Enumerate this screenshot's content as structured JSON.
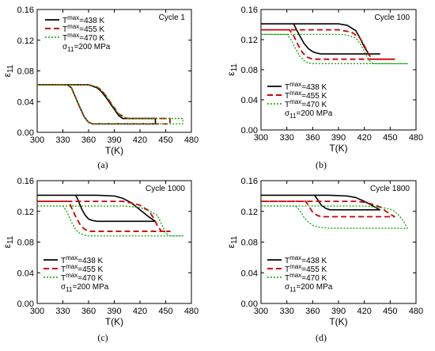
{
  "chart_data": [
    {
      "panel": "(a)",
      "type": "line",
      "cycle_label": "Cycle 1",
      "xlabel": "T(K)",
      "ylabel": "ε11",
      "xlim": [
        300,
        480
      ],
      "ylim": [
        0.0,
        0.16
      ],
      "xticks": [
        "300",
        "330",
        "360",
        "390",
        "420",
        "450",
        "480"
      ],
      "yticks": [
        "0.00",
        "0.04",
        "0.08",
        "0.12",
        "0.16"
      ],
      "legend": [
        "T^max=438 K",
        "T^max=455 K",
        "T^max=470 K"
      ],
      "stress_label": "σ11=200 MPa",
      "legend_position": "top-right",
      "series": [
        {
          "name": "T^max=438 K",
          "color": "#000000",
          "x": [
            300,
            320,
            335,
            340,
            345,
            350,
            355,
            360,
            365,
            370,
            380,
            390,
            400,
            420,
            438,
            438,
            420,
            400,
            395,
            390,
            385,
            380,
            375,
            370,
            360,
            350,
            340,
            330,
            320,
            310,
            300
          ],
          "y": [
            0.062,
            0.062,
            0.062,
            0.058,
            0.045,
            0.032,
            0.02,
            0.013,
            0.011,
            0.011,
            0.011,
            0.011,
            0.011,
            0.011,
            0.011,
            0.018,
            0.018,
            0.018,
            0.022,
            0.03,
            0.038,
            0.046,
            0.053,
            0.058,
            0.062,
            0.062,
            0.062,
            0.062,
            0.062,
            0.062,
            0.062
          ]
        },
        {
          "name": "T^max=455 K",
          "color": "#cc0000",
          "x": [
            300,
            320,
            335,
            340,
            345,
            350,
            355,
            360,
            365,
            370,
            380,
            390,
            400,
            420,
            440,
            455,
            455,
            440,
            420,
            405,
            395,
            390,
            385,
            380,
            375,
            370,
            360,
            350,
            340,
            330,
            320,
            310,
            300
          ],
          "y": [
            0.062,
            0.062,
            0.062,
            0.058,
            0.045,
            0.032,
            0.02,
            0.013,
            0.011,
            0.011,
            0.011,
            0.011,
            0.011,
            0.011,
            0.011,
            0.011,
            0.018,
            0.018,
            0.018,
            0.018,
            0.024,
            0.032,
            0.04,
            0.048,
            0.055,
            0.059,
            0.062,
            0.062,
            0.062,
            0.062,
            0.062,
            0.062,
            0.062
          ]
        },
        {
          "name": "T^max=470 K",
          "color": "#00aa00",
          "x": [
            300,
            320,
            335,
            340,
            345,
            350,
            355,
            360,
            365,
            370,
            380,
            390,
            400,
            420,
            440,
            470,
            470,
            440,
            420,
            405,
            395,
            390,
            385,
            380,
            375,
            370,
            360,
            350,
            340,
            330,
            320,
            310,
            300
          ],
          "y": [
            0.062,
            0.062,
            0.062,
            0.058,
            0.045,
            0.032,
            0.02,
            0.013,
            0.011,
            0.011,
            0.011,
            0.011,
            0.011,
            0.011,
            0.011,
            0.011,
            0.018,
            0.018,
            0.018,
            0.018,
            0.024,
            0.032,
            0.04,
            0.048,
            0.055,
            0.059,
            0.062,
            0.062,
            0.062,
            0.062,
            0.062,
            0.062,
            0.062
          ]
        }
      ]
    },
    {
      "panel": "(b)",
      "type": "line",
      "cycle_label": "Cycle 100",
      "xlabel": "T(K)",
      "ylabel": "ε11",
      "xlim": [
        300,
        480
      ],
      "ylim": [
        0.0,
        0.16
      ],
      "xticks": [
        "300",
        "330",
        "360",
        "390",
        "420",
        "450",
        "480"
      ],
      "yticks": [
        "0.00",
        "0.04",
        "0.08",
        "0.12",
        "0.16"
      ],
      "legend": [
        "T^max=438 K",
        "T^max=455 K",
        "T^max=470 K"
      ],
      "stress_label": "σ11=200 MPa",
      "legend_position": "bottom-left",
      "series": [
        {
          "name": "T^max=438 K",
          "color": "#000000",
          "x": [
            300,
            320,
            338,
            340,
            345,
            350,
            355,
            360,
            365,
            370,
            390,
            420,
            438,
            438,
            425,
            420,
            415,
            410,
            400,
            390,
            380,
            370,
            360,
            350,
            340,
            320,
            300
          ],
          "y": [
            0.141,
            0.141,
            0.141,
            0.136,
            0.125,
            0.115,
            0.108,
            0.104,
            0.102,
            0.101,
            0.101,
            0.101,
            0.101,
            0.101,
            0.101,
            0.11,
            0.122,
            0.132,
            0.139,
            0.141,
            0.141,
            0.141,
            0.141,
            0.141,
            0.141,
            0.141,
            0.141
          ]
        },
        {
          "name": "T^max=455 K",
          "color": "#cc0000",
          "x": [
            300,
            320,
            333,
            338,
            343,
            348,
            353,
            360,
            370,
            390,
            420,
            440,
            455,
            455,
            440,
            430,
            425,
            420,
            415,
            405,
            390,
            370,
            350,
            330,
            300
          ],
          "y": [
            0.133,
            0.133,
            0.133,
            0.125,
            0.113,
            0.103,
            0.097,
            0.094,
            0.094,
            0.094,
            0.094,
            0.094,
            0.094,
            0.094,
            0.094,
            0.094,
            0.1,
            0.112,
            0.122,
            0.13,
            0.133,
            0.133,
            0.133,
            0.133,
            0.133
          ]
        },
        {
          "name": "T^max=470 K",
          "color": "#00aa00",
          "x": [
            300,
            320,
            330,
            335,
            340,
            345,
            350,
            355,
            360,
            370,
            390,
            420,
            440,
            470,
            470,
            440,
            430,
            425,
            420,
            415,
            410,
            400,
            390,
            370,
            350,
            330,
            300
          ],
          "y": [
            0.127,
            0.127,
            0.127,
            0.12,
            0.108,
            0.098,
            0.092,
            0.089,
            0.088,
            0.088,
            0.088,
            0.088,
            0.088,
            0.088,
            0.088,
            0.088,
            0.088,
            0.093,
            0.104,
            0.115,
            0.122,
            0.126,
            0.127,
            0.127,
            0.127,
            0.127,
            0.127
          ]
        }
      ]
    },
    {
      "panel": "(c)",
      "type": "line",
      "cycle_label": "Cycle 1000",
      "xlabel": "T(K)",
      "ylabel": "ε11",
      "xlim": [
        300,
        480
      ],
      "ylim": [
        0.0,
        0.16
      ],
      "xticks": [
        "300",
        "330",
        "360",
        "390",
        "420",
        "450",
        "480"
      ],
      "yticks": [
        "0.00",
        "0.04",
        "0.08",
        "0.12",
        "0.16"
      ],
      "legend": [
        "T^max=438 K",
        "T^max=455 K",
        "T^max=470 K"
      ],
      "stress_label": "σ11=200 MPa",
      "legend_position": "bottom-left",
      "series": [
        {
          "name": "T^max=438 K",
          "color": "#000000",
          "x": [
            300,
            320,
            345,
            348,
            352,
            356,
            360,
            365,
            370,
            380,
            400,
            420,
            438,
            438,
            430,
            420,
            410,
            400,
            390,
            370,
            350,
            300
          ],
          "y": [
            0.141,
            0.141,
            0.141,
            0.134,
            0.123,
            0.115,
            0.11,
            0.108,
            0.107,
            0.107,
            0.107,
            0.107,
            0.107,
            0.107,
            0.113,
            0.122,
            0.131,
            0.137,
            0.14,
            0.141,
            0.141,
            0.141
          ]
        },
        {
          "name": "T^max=455 K",
          "color": "#cc0000",
          "x": [
            300,
            320,
            337,
            340,
            345,
            350,
            355,
            360,
            370,
            390,
            420,
            440,
            455,
            455,
            445,
            440,
            435,
            430,
            420,
            410,
            400,
            380,
            350,
            300
          ],
          "y": [
            0.133,
            0.133,
            0.133,
            0.125,
            0.113,
            0.103,
            0.097,
            0.094,
            0.094,
            0.094,
            0.094,
            0.094,
            0.094,
            0.094,
            0.094,
            0.102,
            0.113,
            0.121,
            0.128,
            0.131,
            0.133,
            0.133,
            0.133,
            0.133
          ]
        },
        {
          "name": "T^max=470 K",
          "color": "#00aa00",
          "x": [
            300,
            320,
            330,
            335,
            340,
            345,
            350,
            355,
            360,
            370,
            390,
            420,
            450,
            470,
            470,
            455,
            450,
            445,
            440,
            430,
            420,
            400,
            380,
            350,
            300
          ],
          "y": [
            0.127,
            0.127,
            0.127,
            0.119,
            0.106,
            0.096,
            0.091,
            0.089,
            0.088,
            0.088,
            0.088,
            0.088,
            0.088,
            0.088,
            0.088,
            0.088,
            0.092,
            0.104,
            0.115,
            0.121,
            0.125,
            0.127,
            0.127,
            0.127,
            0.127
          ]
        }
      ]
    },
    {
      "panel": "(d)",
      "type": "line",
      "cycle_label": "Cycle 1800",
      "xlabel": "T(K)",
      "ylabel": "ε11",
      "xlim": [
        300,
        480
      ],
      "ylim": [
        0.0,
        0.16
      ],
      "xticks": [
        "300",
        "330",
        "360",
        "390",
        "420",
        "450",
        "480"
      ],
      "yticks": [
        "0.00",
        "0.04",
        "0.08",
        "0.12",
        "0.16"
      ],
      "legend": [
        "T^max=438 K",
        "T^max=455 K",
        "T^max=470 K"
      ],
      "stress_label": "σ11=200 MPa",
      "legend_position": "bottom-left",
      "series": [
        {
          "name": "T^max=438 K",
          "color": "#000000",
          "x": [
            300,
            330,
            362,
            366,
            370,
            375,
            380,
            390,
            400,
            420,
            438,
            438,
            430,
            420,
            410,
            400,
            380,
            360,
            300
          ],
          "y": [
            0.141,
            0.141,
            0.141,
            0.135,
            0.128,
            0.124,
            0.122,
            0.122,
            0.122,
            0.122,
            0.122,
            0.122,
            0.127,
            0.133,
            0.138,
            0.14,
            0.141,
            0.141,
            0.141
          ]
        },
        {
          "name": "T^max=455 K",
          "color": "#cc0000",
          "x": [
            300,
            330,
            352,
            356,
            360,
            365,
            370,
            380,
            400,
            420,
            440,
            455,
            455,
            445,
            440,
            430,
            420,
            410,
            400,
            380,
            350,
            300
          ],
          "y": [
            0.133,
            0.133,
            0.133,
            0.126,
            0.119,
            0.115,
            0.113,
            0.113,
            0.113,
            0.113,
            0.113,
            0.113,
            0.113,
            0.12,
            0.125,
            0.129,
            0.132,
            0.133,
            0.133,
            0.133,
            0.133,
            0.133
          ]
        },
        {
          "name": "T^max=470 K",
          "color": "#00aa00",
          "x": [
            300,
            330,
            340,
            345,
            350,
            355,
            360,
            365,
            370,
            380,
            400,
            420,
            440,
            460,
            470,
            470,
            465,
            460,
            455,
            450,
            440,
            430,
            420,
            400,
            380,
            350,
            300
          ],
          "y": [
            0.127,
            0.127,
            0.127,
            0.121,
            0.112,
            0.106,
            0.102,
            0.1,
            0.099,
            0.098,
            0.098,
            0.098,
            0.098,
            0.098,
            0.098,
            0.098,
            0.108,
            0.115,
            0.12,
            0.123,
            0.125,
            0.126,
            0.127,
            0.127,
            0.127,
            0.127,
            0.127
          ]
        }
      ]
    }
  ]
}
